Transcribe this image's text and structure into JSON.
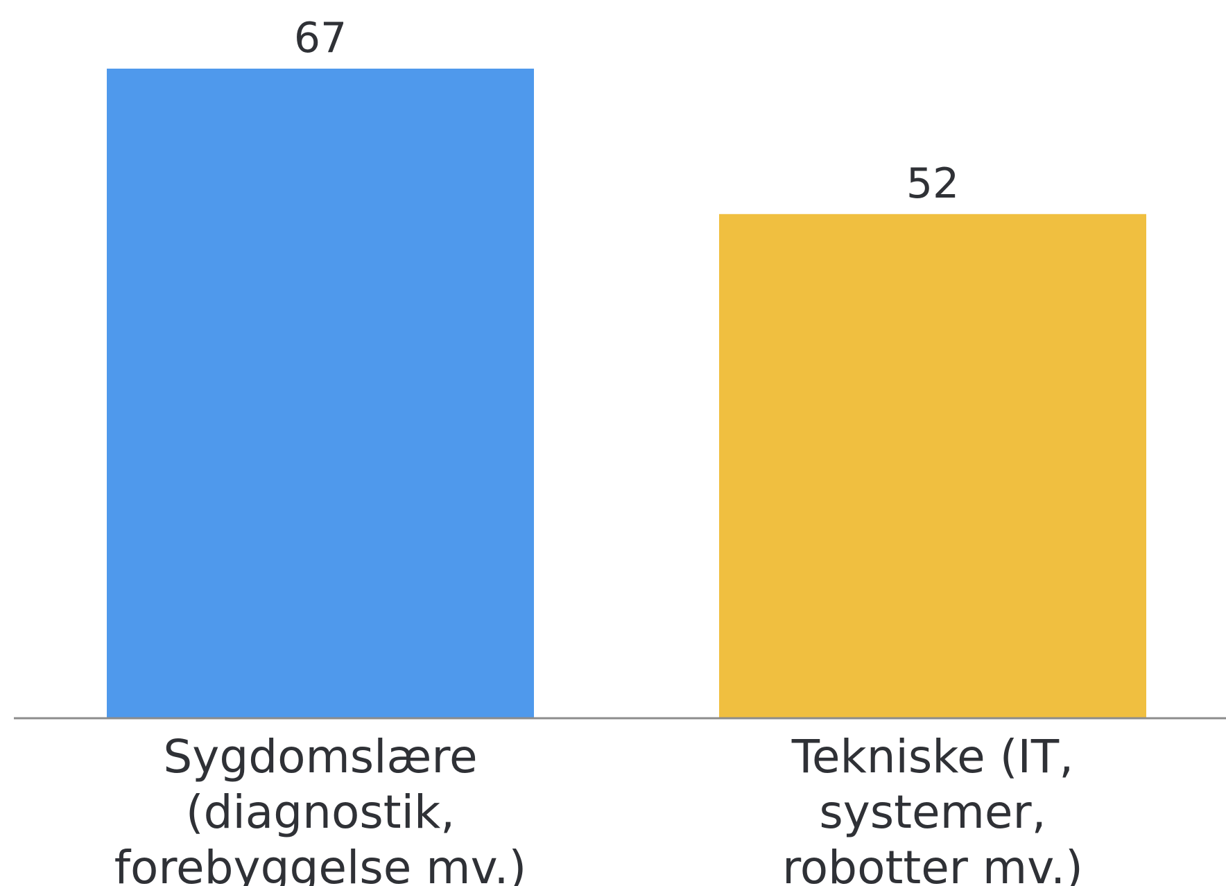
{
  "chart_data": {
    "type": "bar",
    "categories": [
      [
        "Sygdomslære",
        "(diagnostik,",
        "forebyggelse mv.)"
      ],
      [
        "Tekniske (IT,",
        "systemer,",
        "robotter mv.)"
      ]
    ],
    "values": [
      67,
      52
    ],
    "colors": [
      "#4f99ec",
      "#f0bf40"
    ],
    "ylim": [
      0,
      67
    ],
    "title": "",
    "xlabel": "",
    "ylabel": "",
    "grid": false,
    "legend": "none"
  }
}
